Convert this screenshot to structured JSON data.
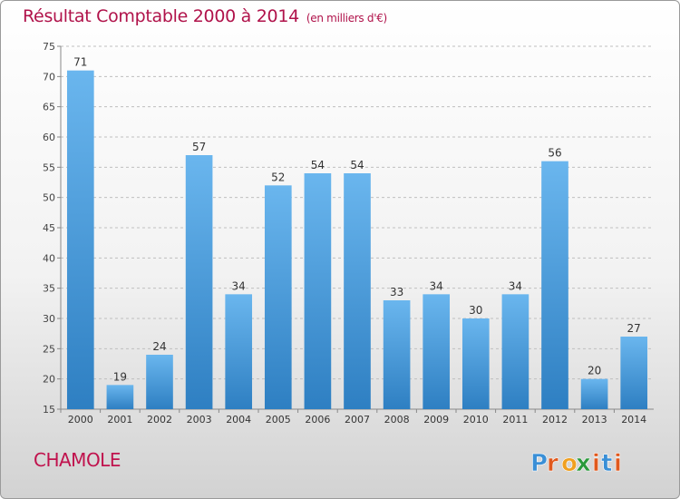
{
  "header": {
    "title": "Résultat Comptable 2000 à 2014",
    "unit_note": "(en milliers d'€)"
  },
  "footer": {
    "commune": "CHAMOLE",
    "logo": {
      "text": "Proxiti",
      "letters": [
        "P",
        "r",
        "o",
        "x",
        "i",
        "t",
        "i"
      ],
      "colors": [
        "#3a8fd6",
        "#e0581c",
        "#f0a020",
        "#2b9a3c",
        "#e0581c",
        "#3a8fd6",
        "#e0581c"
      ]
    }
  },
  "chart_data": {
    "type": "bar",
    "title": "Résultat Comptable 2000 à 2014",
    "xlabel": "",
    "ylabel": "",
    "categories": [
      "2000",
      "2001",
      "2002",
      "2003",
      "2004",
      "2005",
      "2006",
      "2007",
      "2008",
      "2009",
      "2010",
      "2011",
      "2012",
      "2013",
      "2014"
    ],
    "values": [
      71,
      19,
      24,
      57,
      34,
      52,
      54,
      54,
      33,
      34,
      30,
      34,
      56,
      20,
      27
    ],
    "ylim": [
      15,
      75
    ],
    "yticks": [
      15,
      20,
      25,
      30,
      35,
      40,
      45,
      50,
      55,
      60,
      65,
      70,
      75
    ],
    "grid": true,
    "colors": {
      "bar_light": "#6ab6ee",
      "bar_dark": "#2e7fc2",
      "grid": "#bfbfbf"
    }
  }
}
